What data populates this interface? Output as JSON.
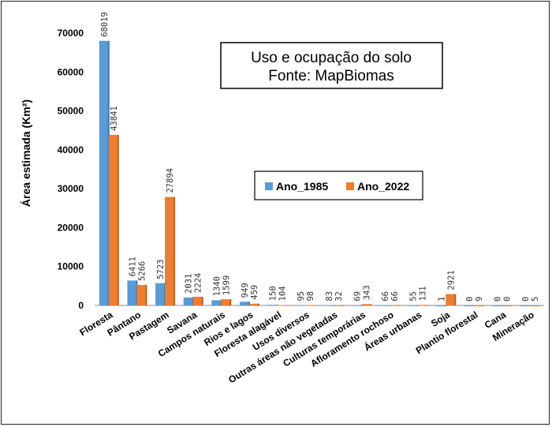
{
  "chart_data": {
    "type": "bar",
    "title": "Uso e ocupação do solo",
    "subtitle": "Fonte: MapBiomas",
    "xlabel": "",
    "ylabel": "Área estimada (Km²)",
    "ylim": [
      0,
      70000
    ],
    "yticks": [
      0,
      10000,
      20000,
      30000,
      40000,
      50000,
      60000,
      70000
    ],
    "grid": false,
    "legend_position": "center-right",
    "categories": [
      "Floresta",
      "Pântano",
      "Pastagem",
      "Savana",
      "Campos naturais",
      "Rios e lagos",
      "Floresta alagável",
      "Usos diversos",
      "Outras áreas não vegetadas",
      "Culturas temporárias",
      "Afloramento rochoso",
      "Áreas urbanas",
      "Soja",
      "Plantio florestal",
      "Cana",
      "Mineração"
    ],
    "series": [
      {
        "name": "Ano_1985",
        "color": "#5B9BD5",
        "values": [
          68019,
          6411,
          5723,
          2031,
          1340,
          949,
          150,
          95,
          83,
          69,
          66,
          55,
          1,
          0,
          0,
          0
        ]
      },
      {
        "name": "Ano_2022",
        "color": "#ED7D31",
        "values": [
          43841,
          5266,
          27894,
          2224,
          1599,
          459,
          104,
          98,
          32,
          343,
          66,
          131,
          2921,
          9,
          0,
          5
        ]
      }
    ]
  }
}
